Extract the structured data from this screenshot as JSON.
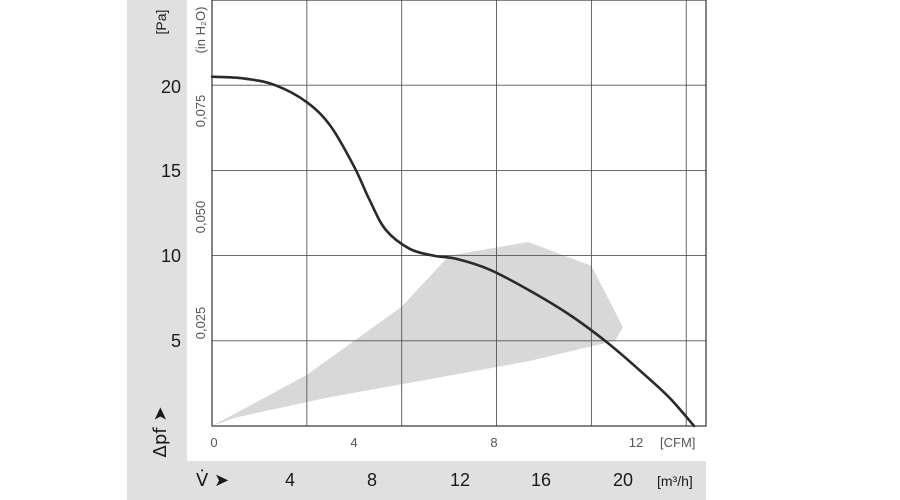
{
  "chart_data": {
    "type": "line",
    "title": "",
    "x_axis_primary": {
      "unit": "[CFM]",
      "ticks": [
        "0",
        "4",
        "8",
        "12"
      ],
      "range": [
        0,
        12.5
      ]
    },
    "x_axis_secondary": {
      "symbol": "V̇ ➤",
      "unit": "[m³/h]",
      "ticks": [
        "4",
        "8",
        "12",
        "16",
        "20"
      ]
    },
    "y_axis_primary": {
      "symbol": "Δpf ➤",
      "unit": "[Pa]",
      "ticks": [
        "5",
        "10",
        "15",
        "20"
      ],
      "range": [
        0,
        25
      ]
    },
    "y_axis_secondary": {
      "unit": "(in H₂O)",
      "ticks": [
        "0,025",
        "0,050",
        "0,075"
      ]
    },
    "grid": true,
    "series": [
      {
        "color": "#2a2a2a",
        "x": [
          0,
          0.8,
          1.6,
          2.4,
          3.0,
          3.6,
          4.0,
          4.4,
          5.0,
          5.6,
          6.2,
          7.0,
          8.0,
          9.0,
          10.0,
          11.0,
          11.6,
          12.2
        ],
        "y": [
          20.5,
          20.4,
          20.0,
          19.0,
          17.6,
          15.2,
          13.2,
          11.5,
          10.4,
          10.0,
          9.8,
          9.2,
          8.0,
          6.6,
          4.9,
          2.9,
          1.6,
          0.0
        ]
      }
    ],
    "operating_region": {
      "color": "#d8d8d8",
      "x": [
        0,
        2.4,
        4.8,
        6.0,
        8.0,
        9.6,
        10.4,
        10.2,
        8.0,
        5.4,
        3.0,
        0.6,
        0
      ],
      "y": [
        0,
        3.0,
        7.0,
        10.0,
        10.8,
        9.4,
        5.8,
        5.0,
        3.8,
        2.7,
        1.7,
        0.5,
        0
      ]
    },
    "background_color": "#e0e0e0"
  }
}
